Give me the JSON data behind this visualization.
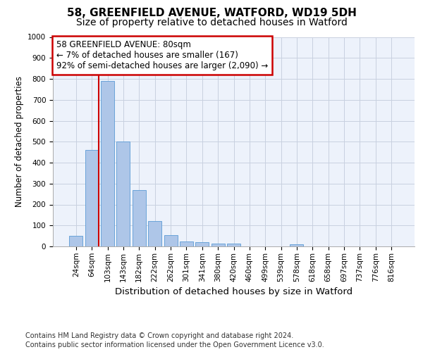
{
  "title1": "58, GREENFIELD AVENUE, WATFORD, WD19 5DH",
  "title2": "Size of property relative to detached houses in Watford",
  "xlabel": "Distribution of detached houses by size in Watford",
  "ylabel": "Number of detached properties",
  "categories": [
    "24sqm",
    "64sqm",
    "103sqm",
    "143sqm",
    "182sqm",
    "222sqm",
    "262sqm",
    "301sqm",
    "341sqm",
    "380sqm",
    "420sqm",
    "460sqm",
    "499sqm",
    "539sqm",
    "578sqm",
    "618sqm",
    "658sqm",
    "697sqm",
    "737sqm",
    "776sqm",
    "816sqm"
  ],
  "values": [
    50,
    460,
    790,
    500,
    270,
    122,
    55,
    22,
    20,
    12,
    15,
    0,
    0,
    0,
    11,
    0,
    0,
    0,
    0,
    0,
    0
  ],
  "bar_color": "#aec6e8",
  "bar_edge_color": "#5b9bd5",
  "grid_color": "#c8d0e0",
  "background_color": "#ffffff",
  "plot_bg_color": "#edf2fb",
  "annotation_text": "58 GREENFIELD AVENUE: 80sqm\n← 7% of detached houses are smaller (167)\n92% of semi-detached houses are larger (2,090) →",
  "annotation_box_color": "#cc0000",
  "ylim": [
    0,
    1000
  ],
  "yticks": [
    0,
    100,
    200,
    300,
    400,
    500,
    600,
    700,
    800,
    900,
    1000
  ],
  "footer1": "Contains HM Land Registry data © Crown copyright and database right 2024.",
  "footer2": "Contains public sector information licensed under the Open Government Licence v3.0.",
  "title1_fontsize": 11,
  "title2_fontsize": 10,
  "xlabel_fontsize": 9.5,
  "ylabel_fontsize": 8.5,
  "tick_fontsize": 7.5,
  "annotation_fontsize": 8.5,
  "footer_fontsize": 7
}
